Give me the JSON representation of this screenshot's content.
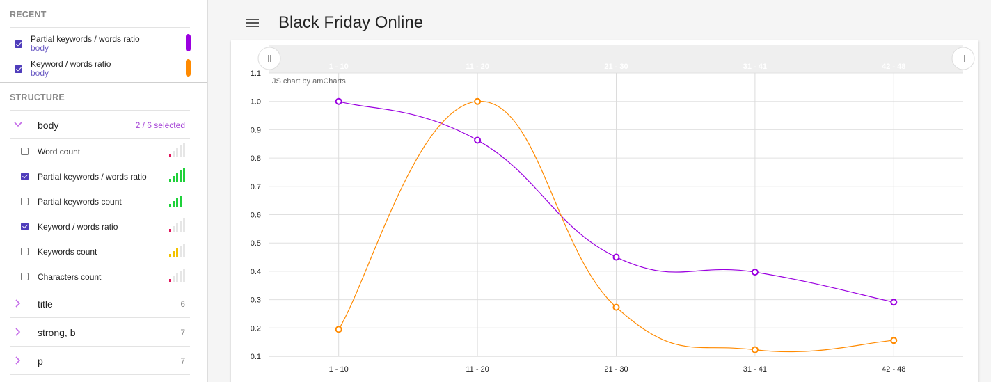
{
  "sidebar": {
    "recent_title": "RECENT",
    "recent": [
      {
        "name": "Partial keywords / words ratio",
        "sub": "body",
        "checked": true,
        "color": "#9b00e0"
      },
      {
        "name": "Keyword / words ratio",
        "sub": "body",
        "checked": true,
        "color": "#ff8a00"
      }
    ],
    "structure_title": "STRUCTURE",
    "groups": [
      {
        "name": "body",
        "count": "2 / 6 selected",
        "expanded": true
      },
      {
        "name": "title",
        "count": "6",
        "expanded": false
      },
      {
        "name": "strong, b",
        "count": "7",
        "expanded": false
      },
      {
        "name": "p",
        "count": "7",
        "expanded": false
      }
    ],
    "metrics": [
      {
        "name": "Word count",
        "checked": false,
        "level": 1,
        "color": "#e0125a"
      },
      {
        "name": "Partial keywords / words ratio",
        "checked": true,
        "level": 5,
        "color": "#1fd13a"
      },
      {
        "name": "Partial keywords count",
        "checked": false,
        "level": 4,
        "color": "#1fd13a"
      },
      {
        "name": "Keyword / words ratio",
        "checked": true,
        "level": 1,
        "color": "#e0125a"
      },
      {
        "name": "Keywords count",
        "checked": false,
        "level": 3,
        "color": "#f2c200"
      },
      {
        "name": "Characters count",
        "checked": false,
        "level": 1,
        "color": "#e0125a"
      }
    ]
  },
  "header": {
    "title": "Black Friday Online"
  },
  "chart_data": {
    "type": "line",
    "credit": "JS chart by amCharts",
    "categories": [
      "1 - 10",
      "11 - 20",
      "21 - 30",
      "31 - 41",
      "42 - 48"
    ],
    "ylim": [
      0.1,
      1.1
    ],
    "yticks": [
      "1.1",
      "1.0",
      "0.9",
      "0.8",
      "0.7",
      "0.6",
      "0.5",
      "0.4",
      "0.3",
      "0.2",
      "0.1"
    ],
    "grid": true,
    "series": [
      {
        "values": [
          1.0,
          0.863,
          0.45,
          0.397,
          0.291
        ],
        "color": "#9b00e0"
      },
      {
        "values": [
          0.195,
          1.0,
          0.273,
          0.123,
          0.156
        ],
        "color": "#ff8a00"
      }
    ],
    "scrollbar": {
      "labels": [
        "1 - 10",
        "11 - 20",
        "21 - 30",
        "31 - 41",
        "42 - 48"
      ]
    }
  }
}
